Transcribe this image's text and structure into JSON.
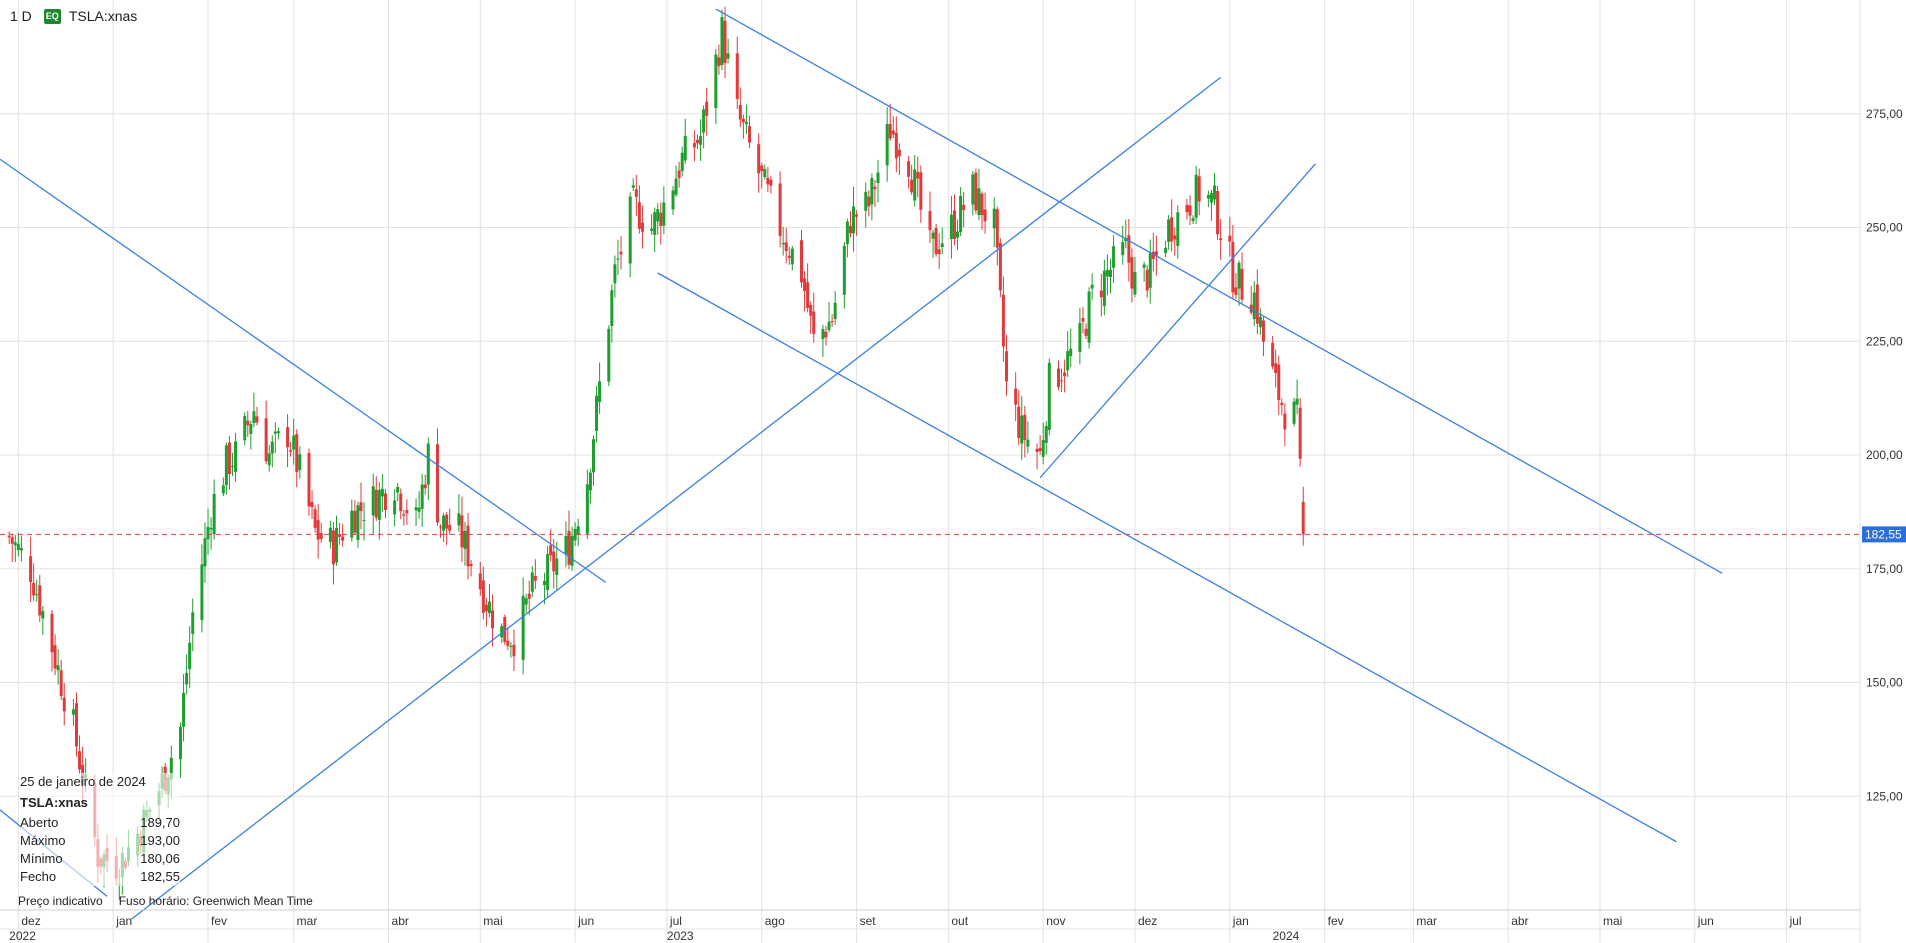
{
  "toolbar": {
    "interval": "1 D",
    "badge": "EQ",
    "symbol": "TSLA:xnas"
  },
  "info": {
    "date": "25 de janeiro de 2024",
    "symbol": "TSLA:xnas",
    "rows": [
      {
        "label": "Aberto",
        "value": "189,70"
      },
      {
        "label": "Máximo",
        "value": "193,00"
      },
      {
        "label": "Mínimo",
        "value": "180,06"
      },
      {
        "label": "Fecho",
        "value": "182,55"
      }
    ],
    "footer_left": "Preço indicativo",
    "footer_right": "Fuso horário: Greenwich Mean Time"
  },
  "colors": {
    "up": "#1e9e2e",
    "down": "#e03a3a",
    "trendline": "#3a7fe0",
    "last_price": "#e04040",
    "grid": "#e2e2e2"
  },
  "chart_data": {
    "type": "candlestick",
    "y_range": [
      100,
      300
    ],
    "x_range": [
      "2022-11-25",
      "2024-07-25"
    ],
    "y_ticks": [
      "125,00",
      "150,00",
      "175,00",
      "200,00",
      "225,00",
      "250,00",
      "275,00"
    ],
    "y_tick_values": [
      125,
      150,
      175,
      200,
      225,
      250,
      275
    ],
    "month_labels": [
      {
        "date": "2022-12-01",
        "label": "dez"
      },
      {
        "date": "2023-01-01",
        "label": "jan"
      },
      {
        "date": "2023-02-01",
        "label": "fev"
      },
      {
        "date": "2023-03-01",
        "label": "mar"
      },
      {
        "date": "2023-04-01",
        "label": "abr"
      },
      {
        "date": "2023-05-01",
        "label": "mai"
      },
      {
        "date": "2023-06-01",
        "label": "jun"
      },
      {
        "date": "2023-07-01",
        "label": "jul"
      },
      {
        "date": "2023-08-01",
        "label": "ago"
      },
      {
        "date": "2023-09-01",
        "label": "set"
      },
      {
        "date": "2023-10-01",
        "label": "out"
      },
      {
        "date": "2023-11-01",
        "label": "nov"
      },
      {
        "date": "2023-12-01",
        "label": "dez"
      },
      {
        "date": "2024-01-01",
        "label": "jan"
      },
      {
        "date": "2024-02-01",
        "label": "fev"
      },
      {
        "date": "2024-03-01",
        "label": "mar"
      },
      {
        "date": "2024-04-01",
        "label": "abr"
      },
      {
        "date": "2024-05-01",
        "label": "mai"
      },
      {
        "date": "2024-06-01",
        "label": "jun"
      },
      {
        "date": "2024-07-01",
        "label": "jul"
      }
    ],
    "year_labels": [
      {
        "date": "2022-11-28",
        "label": "2022"
      },
      {
        "date": "2023-07-01",
        "label": "2023"
      },
      {
        "date": "2024-01-15",
        "label": "2024"
      }
    ],
    "last_price": {
      "value": 182.55,
      "label": "182,55"
    },
    "close_path": [
      [
        "2022-11-28",
        182
      ],
      [
        "2022-12-05",
        175
      ],
      [
        "2022-12-12",
        158
      ],
      [
        "2022-12-19",
        140
      ],
      [
        "2022-12-27",
        112
      ],
      [
        "2023-01-03",
        110
      ],
      [
        "2023-01-10",
        118
      ],
      [
        "2023-01-17",
        128
      ],
      [
        "2023-01-23",
        140
      ],
      [
        "2023-01-27",
        165
      ],
      [
        "2023-02-02",
        188
      ],
      [
        "2023-02-07",
        198
      ],
      [
        "2023-02-10",
        200
      ],
      [
        "2023-02-16",
        210
      ],
      [
        "2023-02-21",
        200
      ],
      [
        "2023-02-27",
        205
      ],
      [
        "2023-03-03",
        196
      ],
      [
        "2023-03-08",
        183
      ],
      [
        "2023-03-14",
        180
      ],
      [
        "2023-03-20",
        187
      ],
      [
        "2023-03-27",
        190
      ],
      [
        "2023-04-03",
        194
      ],
      [
        "2023-04-10",
        185
      ],
      [
        "2023-04-14",
        200
      ],
      [
        "2023-04-18",
        185
      ],
      [
        "2023-04-24",
        183
      ],
      [
        "2023-04-28",
        177
      ],
      [
        "2023-05-03",
        168
      ],
      [
        "2023-05-08",
        161
      ],
      [
        "2023-05-12",
        160
      ],
      [
        "2023-05-18",
        170
      ],
      [
        "2023-05-24",
        175
      ],
      [
        "2023-05-30",
        180
      ],
      [
        "2023-06-05",
        195
      ],
      [
        "2023-06-09",
        215
      ],
      [
        "2023-06-14",
        240
      ],
      [
        "2023-06-20",
        255
      ],
      [
        "2023-06-26",
        250
      ],
      [
        "2023-06-30",
        255
      ],
      [
        "2023-07-06",
        265
      ],
      [
        "2023-07-12",
        270
      ],
      [
        "2023-07-19",
        293
      ],
      [
        "2023-07-24",
        275
      ],
      [
        "2023-07-31",
        262
      ],
      [
        "2023-08-07",
        250
      ],
      [
        "2023-08-14",
        240
      ],
      [
        "2023-08-18",
        225
      ],
      [
        "2023-08-24",
        230
      ],
      [
        "2023-08-30",
        252
      ],
      [
        "2023-09-05",
        255
      ],
      [
        "2023-09-12",
        272
      ],
      [
        "2023-09-18",
        265
      ],
      [
        "2023-09-25",
        245
      ],
      [
        "2023-10-02",
        250
      ],
      [
        "2023-10-09",
        258
      ],
      [
        "2023-10-16",
        250
      ],
      [
        "2023-10-20",
        215
      ],
      [
        "2023-10-25",
        205
      ],
      [
        "2023-10-31",
        200
      ],
      [
        "2023-11-03",
        216
      ],
      [
        "2023-11-08",
        220
      ],
      [
        "2023-11-13",
        225
      ],
      [
        "2023-11-17",
        235
      ],
      [
        "2023-11-22",
        240
      ],
      [
        "2023-11-28",
        245
      ],
      [
        "2023-12-01",
        238
      ],
      [
        "2023-12-06",
        240
      ],
      [
        "2023-12-12",
        250
      ],
      [
        "2023-12-18",
        255
      ],
      [
        "2023-12-22",
        258
      ],
      [
        "2023-12-27",
        255
      ],
      [
        "2024-01-02",
        240
      ],
      [
        "2024-01-05",
        237
      ],
      [
        "2024-01-09",
        235
      ],
      [
        "2024-01-12",
        225
      ],
      [
        "2024-01-16",
        215
      ],
      [
        "2024-01-19",
        210
      ],
      [
        "2024-01-23",
        208
      ],
      [
        "2024-01-25",
        182.55
      ]
    ],
    "trendlines": [
      {
        "from": [
          "2022-11-25",
          265
        ],
        "to": [
          "2023-06-11",
          172
        ]
      },
      {
        "from": [
          "2023-01-07",
          98
        ],
        "to": [
          "2023-12-29",
          283
        ]
      },
      {
        "from": [
          "2023-07-17",
          298
        ],
        "to": [
          "2024-06-10",
          174
        ]
      },
      {
        "from": [
          "2023-06-28",
          240
        ],
        "to": [
          "2024-05-26",
          115
        ]
      },
      {
        "from": [
          "2023-10-31",
          195
        ],
        "to": [
          "2024-01-29",
          264
        ]
      },
      {
        "from": [
          "2022-11-25",
          122
        ],
        "to": [
          "2022-12-30",
          103
        ]
      }
    ]
  }
}
